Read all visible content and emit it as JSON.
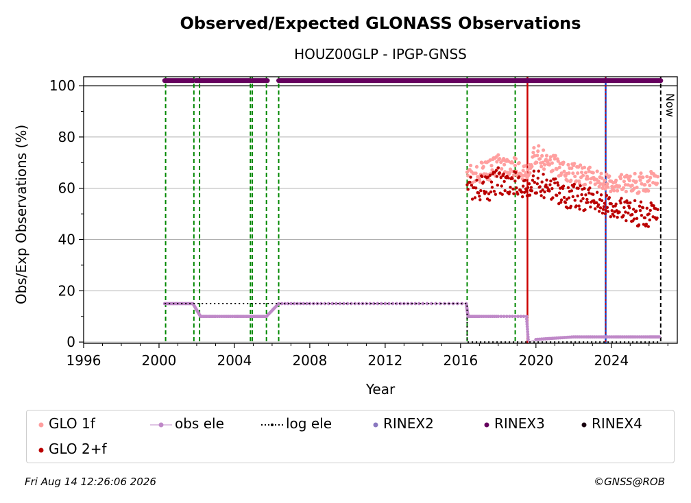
{
  "chart_data": {
    "type": "scatter",
    "title": "Observed/Expected GLONASS Observations",
    "subtitle": "HOUZ00GLP - IPGP-GNSS",
    "xlabel": "Year",
    "ylabel": "Obs/Exp Observations (%)",
    "xlim": [
      1996,
      2027.5
    ],
    "ylim": [
      -0.5,
      103.5
    ],
    "xticks": [
      1996,
      2000,
      2004,
      2008,
      2012,
      2016,
      2020,
      2024
    ],
    "yticks": [
      0,
      20,
      40,
      60,
      80,
      100
    ],
    "grid": "horizontal",
    "now_label": "Now",
    "now_x": 2026.62,
    "reference_line_y": 100,
    "events_green_dashed": [
      2000.35,
      2001.85,
      2002.15,
      2004.85,
      2004.95,
      2005.7,
      2006.35,
      2016.35,
      2018.9
    ],
    "events_red_solid": [
      2019.55
    ],
    "events_blue_solid": [
      2023.7
    ],
    "legend_position": "bottom",
    "colors": {
      "glo1f": "#ff9f9f",
      "glo2f": "#bb0000",
      "obs_ele": "#bf88c8",
      "log_ele": "#000000",
      "rinex2": "#8a78c0",
      "rinex3": "#66005e",
      "rinex4": "#1a0010",
      "green": "#008800",
      "red": "#cc0000",
      "blue": "#1144cc"
    },
    "series": [
      {
        "name": "GLO 1f",
        "x": [
          2016.35,
          2017.0,
          2017.5,
          2018.0,
          2018.5,
          2019.0,
          2019.5,
          2020.0,
          2020.5,
          2021.0,
          2021.5,
          2022.0,
          2022.5,
          2023.0,
          2023.5,
          2024.0,
          2024.5,
          2025.0,
          2025.5,
          2026.0,
          2026.5
        ],
        "y": [
          66,
          66,
          67,
          69,
          69,
          68,
          67,
          74,
          71,
          69,
          67,
          66,
          65,
          64,
          63,
          62,
          62,
          62,
          62,
          63,
          64
        ]
      },
      {
        "name": "GLO 2+f",
        "x": [
          2016.35,
          2017.0,
          2017.5,
          2018.0,
          2018.5,
          2019.0,
          2019.5,
          2020.0,
          2020.5,
          2021.0,
          2021.5,
          2022.0,
          2022.5,
          2023.0,
          2023.5,
          2024.0,
          2024.5,
          2025.0,
          2025.5,
          2026.0,
          2026.5
        ],
        "y": [
          61,
          60,
          60,
          63,
          62,
          62,
          61,
          63,
          61,
          59,
          57,
          57,
          56,
          55,
          54,
          53,
          52,
          51,
          50,
          50,
          51
        ]
      },
      {
        "name": "obs ele",
        "x": [
          2000.3,
          2001.0,
          2001.8,
          2002.2,
          2003.0,
          2004.0,
          2004.8,
          2005.0,
          2005.7,
          2006.35,
          2008.0,
          2010.0,
          2012.0,
          2014.0,
          2016.3,
          2016.4,
          2017.0,
          2018.0,
          2019.5,
          2019.6,
          2020.0,
          2021.0,
          2022.0,
          2023.0,
          2024.0,
          2025.0,
          2026.0,
          2026.6
        ],
        "y": [
          15,
          15,
          15,
          10,
          10,
          10,
          10,
          10,
          10,
          15,
          15,
          15,
          15,
          15,
          15,
          10,
          10,
          10,
          10,
          0,
          1,
          1.5,
          2,
          2,
          2,
          2,
          2,
          2
        ]
      },
      {
        "name": "log ele",
        "x": [
          2000.3,
          2016.35,
          2016.35,
          2026.62
        ],
        "y": [
          15,
          15,
          0,
          0
        ]
      },
      {
        "name": "RINEX2",
        "x": [],
        "y": []
      },
      {
        "name": "RINEX3",
        "segments": [
          [
            2000.3,
            2001.8
          ],
          [
            2001.95,
            2004.85
          ],
          [
            2004.95,
            2005.75
          ],
          [
            2006.35,
            2026.62
          ]
        ],
        "y": 102
      },
      {
        "name": "RINEX4",
        "x": [],
        "y": []
      }
    ]
  },
  "legend": [
    {
      "label": "GLO 1f",
      "kind": "dot",
      "color": "#ff9f9f"
    },
    {
      "label": "obs ele",
      "kind": "line-dot",
      "color": "#bf88c8"
    },
    {
      "label": "log ele",
      "kind": "dotted",
      "color": "#000000"
    },
    {
      "label": "RINEX2",
      "kind": "dot",
      "color": "#8a78c0"
    },
    {
      "label": "RINEX3",
      "kind": "dot",
      "color": "#66005e"
    },
    {
      "label": "RINEX4",
      "kind": "dot",
      "color": "#1a0010"
    },
    {
      "label": "GLO 2+f",
      "kind": "dot",
      "color": "#bb0000"
    }
  ],
  "footer": {
    "timestamp": "Fri Aug 14 12:26:06 2026",
    "credit": "©GNSS@ROB"
  }
}
